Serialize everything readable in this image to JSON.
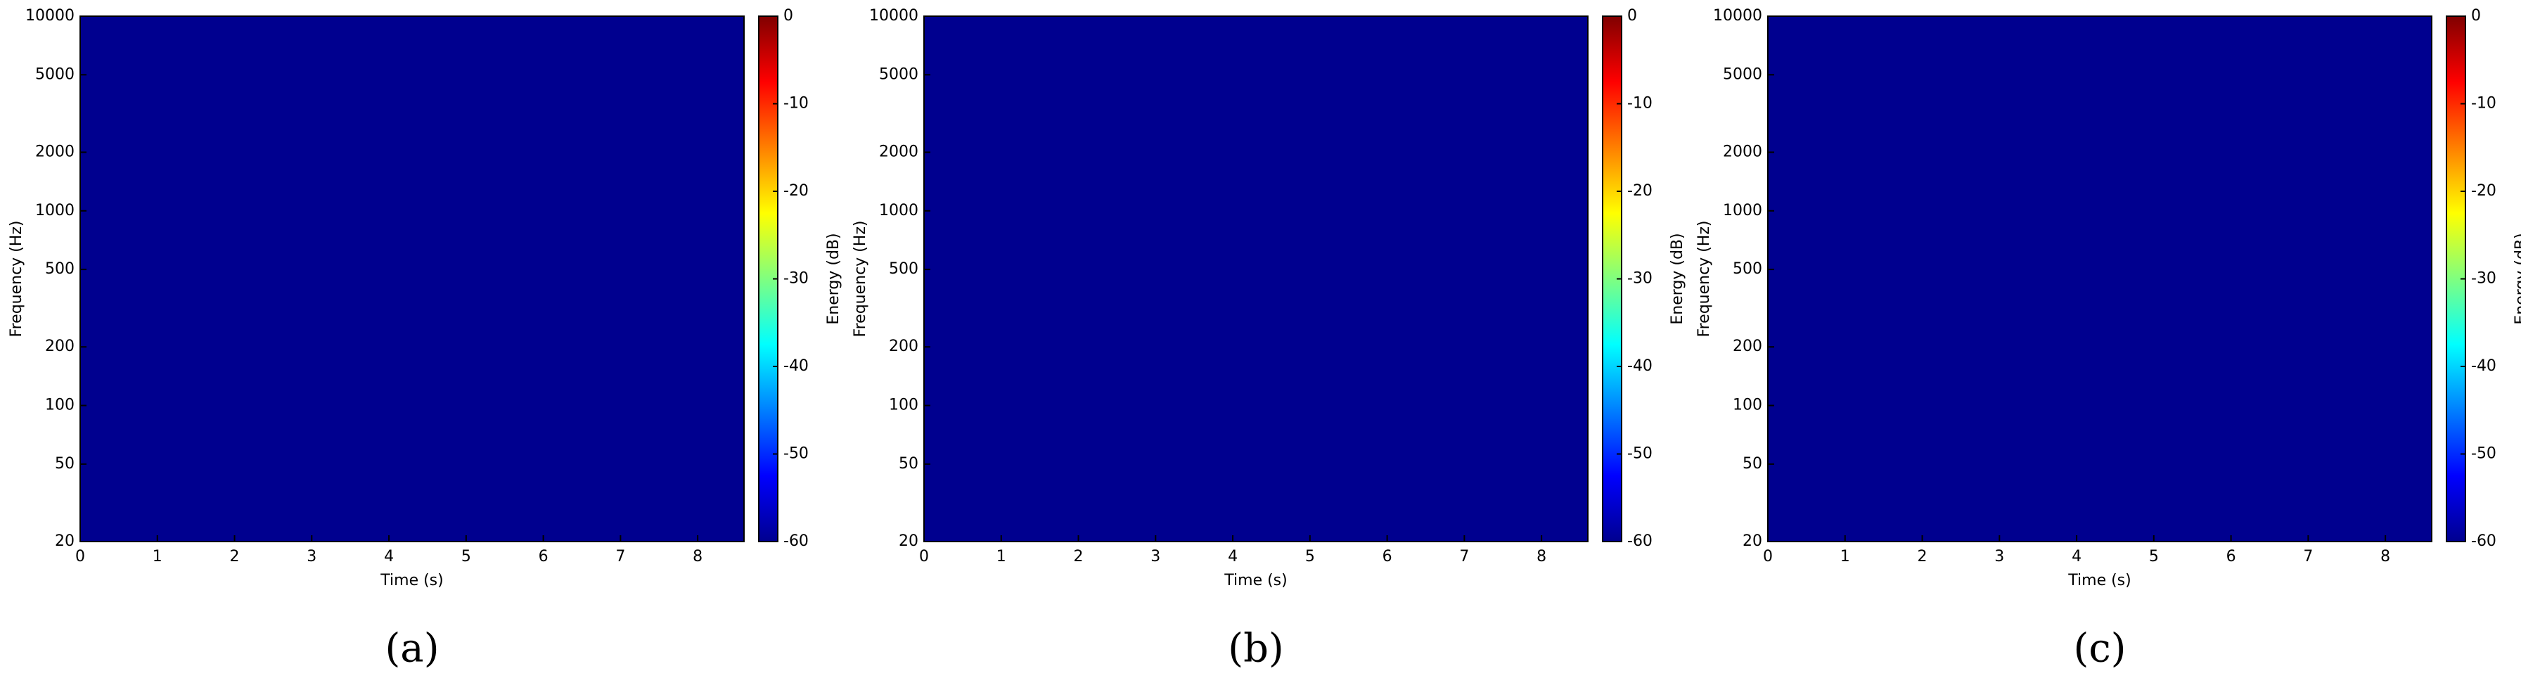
{
  "chart_data": [
    {
      "type": "heatmap",
      "caption": "(a)",
      "xlabel": "Time (s)",
      "ylabel": "Frequency (Hz)",
      "xlim": [
        0,
        8.6
      ],
      "xticks": [
        0,
        1,
        2,
        3,
        4,
        5,
        6,
        7,
        8
      ],
      "ylim": [
        20,
        10000
      ],
      "yticks": [
        20,
        50,
        100,
        200,
        500,
        1000,
        2000,
        5000,
        10000
      ],
      "yscale": "log",
      "colormap": "jet",
      "colorbar_label": "Energy (dB)",
      "clim": [
        -60,
        0
      ],
      "cticks": [
        0,
        -10,
        -20,
        -30,
        -40,
        -50,
        -60
      ]
    },
    {
      "type": "heatmap",
      "caption": "(b)",
      "xlabel": "Time (s)",
      "ylabel": "Frequency (Hz)",
      "xlim": [
        0,
        8.6
      ],
      "xticks": [
        0,
        1,
        2,
        3,
        4,
        5,
        6,
        7,
        8
      ],
      "ylim": [
        20,
        10000
      ],
      "yticks": [
        20,
        50,
        100,
        200,
        500,
        1000,
        2000,
        5000,
        10000
      ],
      "yscale": "log",
      "colormap": "jet",
      "colorbar_label": "Energy (dB)",
      "clim": [
        -60,
        0
      ],
      "cticks": [
        0,
        -10,
        -20,
        -30,
        -40,
        -50,
        -60
      ]
    },
    {
      "type": "heatmap",
      "caption": "(c)",
      "xlabel": "Time (s)",
      "ylabel": "Frequency (Hz)",
      "xlim": [
        0,
        8.6
      ],
      "xticks": [
        0,
        1,
        2,
        3,
        4,
        5,
        6,
        7,
        8
      ],
      "ylim": [
        20,
        10000
      ],
      "yticks": [
        20,
        50,
        100,
        200,
        500,
        1000,
        2000,
        5000,
        10000
      ],
      "yscale": "log",
      "colormap": "jet",
      "colorbar_label": "Energy (dB)",
      "clim": [
        -60,
        0
      ],
      "cticks": [
        0,
        -10,
        -20,
        -30,
        -40,
        -50,
        -60
      ]
    }
  ]
}
